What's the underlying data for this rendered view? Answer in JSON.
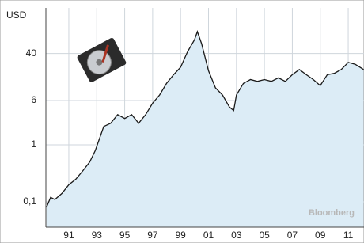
{
  "chart_data": {
    "type": "line",
    "y_label": "USD",
    "annotation": "Bloomberg",
    "log_scale": true,
    "grid": true,
    "color": "#1a1a1a",
    "fill_color": "#dcecf6",
    "x": [
      1989.4,
      1989.7,
      1990.0,
      1990.5,
      1991.0,
      1991.5,
      1992.0,
      1992.5,
      1992.9,
      1993.5,
      1994.0,
      1994.5,
      1995.0,
      1995.5,
      1996.0,
      1996.5,
      1997.0,
      1997.5,
      1998.0,
      1998.5,
      1999.0,
      1999.5,
      2000.0,
      2000.2,
      2000.5,
      2001.0,
      2001.5,
      2002.0,
      2002.5,
      2002.8,
      2003.0,
      2003.5,
      2004.0,
      2004.5,
      2005.0,
      2005.5,
      2006.0,
      2006.5,
      2007.0,
      2007.5,
      2008.0,
      2008.5,
      2009.0,
      2009.5,
      2010.0,
      2010.5,
      2011.0,
      2011.5,
      2012.1
    ],
    "values": [
      0.08,
      0.12,
      0.11,
      0.14,
      0.2,
      0.25,
      0.35,
      0.5,
      0.8,
      2.1,
      2.4,
      3.4,
      2.9,
      3.4,
      2.4,
      3.4,
      5.4,
      7.5,
      12,
      17,
      23,
      43,
      70,
      97,
      60,
      20,
      10,
      7.5,
      4.6,
      4,
      7.5,
      12,
      14,
      13,
      14,
      13,
      15,
      13,
      17,
      21,
      17,
      14,
      11,
      17,
      18,
      21,
      28,
      26,
      21
    ],
    "xlim": [
      1989.36,
      2012.13
    ],
    "ylim": [
      0.036,
      253
    ],
    "xticks": [
      {
        "value": 1991,
        "label": "91"
      },
      {
        "value": 1993,
        "label": "93"
      },
      {
        "value": 1995,
        "label": "95"
      },
      {
        "value": 1997,
        "label": "97"
      },
      {
        "value": 1999,
        "label": "99"
      },
      {
        "value": 2001,
        "label": "01"
      },
      {
        "value": 2003,
        "label": "03"
      },
      {
        "value": 2005,
        "label": "05"
      },
      {
        "value": 2007,
        "label": "07"
      },
      {
        "value": 2009,
        "label": "09"
      },
      {
        "value": 2011,
        "label": "11"
      }
    ],
    "yticks": [
      {
        "value": 0.1,
        "label": "0,1"
      },
      1,
      6,
      40
    ]
  }
}
